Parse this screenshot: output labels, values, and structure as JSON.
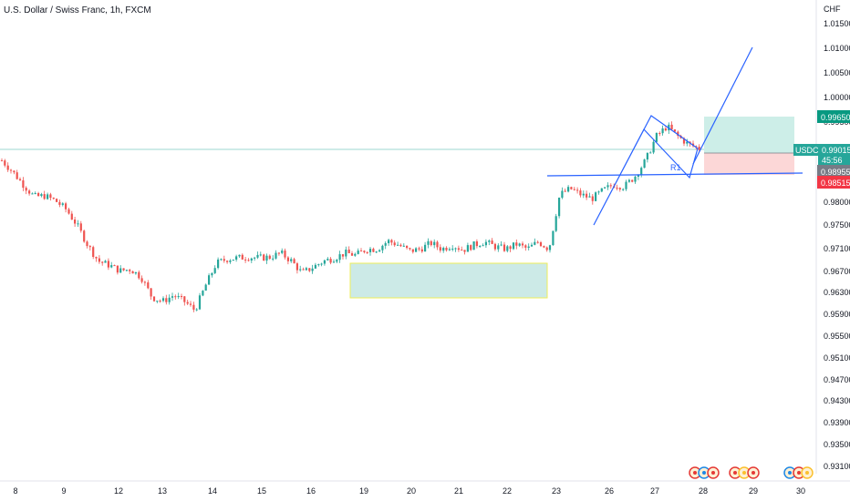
{
  "chart_data": {
    "type": "candlestick",
    "title": "U.S. Dollar / Swiss Franc, 1h, FXCM",
    "currency_label": "CHF",
    "symbol": "USDCHF",
    "y_ticks": [
      "1.01500",
      "1.01000",
      "1.00500",
      "1.00000",
      "0.99500",
      "0.98000",
      "0.97500",
      "0.97100",
      "0.96700",
      "0.96300",
      "0.95900",
      "0.95500",
      "0.95100",
      "0.94700",
      "0.94300",
      "0.93900",
      "0.93500",
      "0.93100"
    ],
    "x_ticks": [
      "8",
      "9",
      "12",
      "13",
      "14",
      "15",
      "16",
      "19",
      "20",
      "21",
      "22",
      "23",
      "26",
      "27",
      "28",
      "29",
      "30"
    ],
    "price_tags": {
      "target": "0.99650",
      "current_price": "0.99015",
      "countdown": "45:56",
      "entry": "0.98955",
      "stop": "0.98515"
    },
    "annotation": "R1",
    "colors": {
      "up": "#26a69a",
      "down": "#ef5350",
      "trendline": "#2962ff",
      "consolidation_fill": "#b2dfdb",
      "consolidation_border": "#e6e600",
      "profit_zone": "#cdeee8",
      "loss_zone": "#fcd7d7",
      "current_price_tag": "#26a69a",
      "entry_tag": "#787b86",
      "stop_tag": "#f23645"
    },
    "price_path": [
      [
        0.987,
        0.9855
      ],
      [
        0.9842,
        0.9818
      ],
      [
        0.981,
        0.979
      ],
      [
        0.978,
        0.9775
      ],
      [
        0.9782,
        0.977
      ],
      [
        0.977,
        0.9752
      ],
      [
        0.9748,
        0.9722
      ],
      [
        0.971,
        0.9686
      ],
      [
        0.966,
        0.963
      ],
      [
        0.962,
        0.9586
      ],
      [
        0.961,
        0.96
      ],
      [
        0.9596,
        0.9588
      ],
      [
        0.96,
        0.959
      ],
      [
        0.958,
        0.954
      ],
      [
        0.953,
        0.9515
      ],
      [
        0.952,
        0.9525
      ],
      [
        0.9535,
        0.9522
      ],
      [
        0.952,
        0.9505
      ],
      [
        0.9498,
        0.949
      ],
      [
        0.956,
        0.961
      ],
      [
        0.9615,
        0.9622
      ],
      [
        0.9625,
        0.962
      ],
      [
        0.9628,
        0.9622
      ],
      [
        0.963,
        0.9625
      ],
      [
        0.9628,
        0.9632
      ],
      [
        0.963,
        0.964
      ],
      [
        0.964,
        0.9625
      ],
      [
        0.962,
        0.9585
      ],
      [
        0.959,
        0.9605
      ],
      [
        0.9605,
        0.9618
      ],
      [
        0.962,
        0.9625
      ],
      [
        0.9628,
        0.964
      ],
      [
        0.964,
        0.963
      ],
      [
        0.9635,
        0.9648
      ],
      [
        0.965,
        0.964
      ],
      [
        0.965,
        0.9672
      ],
      [
        0.967,
        0.966
      ],
      [
        0.966,
        0.9645
      ],
      [
        0.9645,
        0.965
      ],
      [
        0.965,
        0.966
      ],
      [
        0.9665,
        0.9645
      ],
      [
        0.965,
        0.966
      ],
      [
        0.966,
        0.965
      ],
      [
        0.9648,
        0.966
      ],
      [
        0.966,
        0.9668
      ],
      [
        0.9668,
        0.9655
      ],
      [
        0.9656,
        0.9645
      ],
      [
        0.965,
        0.9665
      ],
      [
        0.9662,
        0.965
      ],
      [
        0.965,
        0.967
      ],
      [
        0.9668,
        0.965
      ],
      [
        0.965,
        0.978
      ],
      [
        0.9785,
        0.981
      ],
      [
        0.98,
        0.979
      ],
      [
        0.9785,
        0.9775
      ],
      [
        0.9775,
        0.979
      ],
      [
        0.9795,
        0.9815
      ],
      [
        0.981,
        0.9805
      ],
      [
        0.9805,
        0.9825
      ],
      [
        0.983,
        0.985
      ],
      [
        0.987,
        0.992
      ],
      [
        0.993,
        0.996
      ],
      [
        0.9955,
        0.993
      ],
      [
        0.993,
        0.9915
      ],
      [
        0.991,
        0.9898
      ],
      [
        0.99,
        0.9902
      ]
    ]
  }
}
